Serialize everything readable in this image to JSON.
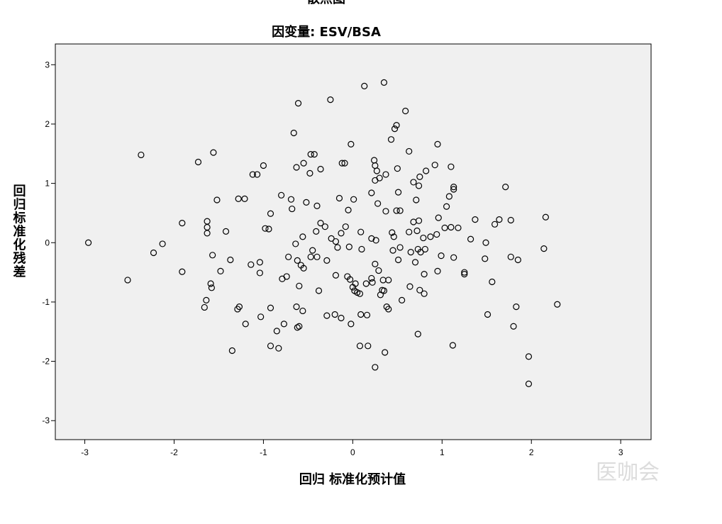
{
  "chart_data": {
    "type": "scatter",
    "title": "散点图",
    "subtitle": "因变量: ESV/BSA",
    "x_label": "回归 标准化预计值",
    "y_label": "回归标准化残差",
    "xlim": [
      -3.33,
      3.34
    ],
    "ylim": [
      -3.32,
      3.35
    ],
    "xticks": [
      -3,
      -2,
      -1,
      0,
      1,
      2,
      3
    ],
    "yticks": [
      -3,
      -2,
      -1,
      0,
      1,
      2,
      3
    ],
    "color": "#000000",
    "background": "#f0f0f0",
    "x": [
      -2.96,
      -2.52,
      -2.37,
      -2.23,
      -2.13,
      -1.91,
      -1.91,
      -1.73,
      -1.56,
      -1.63,
      -1.63,
      -1.63,
      -1.57,
      -1.52,
      -1.59,
      -1.58,
      -1.64,
      -1.66,
      -1.48,
      -1.42,
      -1.35,
      -1.37,
      -1.28,
      -1.21,
      -1.27,
      -1.29,
      -1.2,
      -1.14,
      -1.12,
      -1.07,
      -1.04,
      -1.04,
      -1.0,
      -0.98,
      -0.94,
      -0.92,
      -1.03,
      -0.92,
      -0.92,
      -0.85,
      -0.83,
      -0.8,
      -0.79,
      -0.77,
      -0.74,
      -0.72,
      -0.69,
      -0.68,
      -0.66,
      -0.64,
      -0.63,
      -0.62,
      -0.61,
      -0.6,
      -0.63,
      -0.62,
      -0.6,
      -0.58,
      -0.55,
      -0.56,
      -0.55,
      -0.56,
      -0.52,
      -0.48,
      -0.47,
      -0.43,
      -0.47,
      -0.45,
      -0.4,
      -0.41,
      -0.4,
      -0.38,
      -0.36,
      -0.36,
      -0.31,
      -0.29,
      -0.29,
      -0.25,
      -0.24,
      -0.19,
      -0.19,
      -0.2,
      -0.17,
      -0.15,
      -0.13,
      -0.12,
      -0.09,
      -0.13,
      -0.08,
      -0.06,
      -0.05,
      -0.04,
      -0.03,
      -0.02,
      -0.02,
      0.01,
      0.0,
      0.02,
      0.03,
      0.05,
      0.08,
      0.09,
      0.1,
      0.09,
      0.08,
      0.13,
      0.15,
      0.16,
      0.17,
      0.21,
      0.21,
      0.22,
      0.21,
      0.24,
      0.25,
      0.25,
      0.25,
      0.26,
      0.25,
      0.27,
      0.28,
      0.29,
      0.3,
      0.31,
      0.33,
      0.34,
      0.35,
      0.35,
      0.36,
      0.37,
      0.37,
      0.38,
      0.4,
      0.4,
      0.43,
      0.44,
      0.45,
      0.46,
      0.47,
      0.49,
      0.49,
      0.5,
      0.51,
      0.51,
      0.53,
      0.53,
      0.55,
      0.59,
      0.63,
      0.63,
      0.64,
      0.65,
      0.68,
      0.68,
      0.7,
      0.71,
      0.72,
      0.73,
      0.74,
      0.75,
      0.74,
      0.73,
      0.75,
      0.76,
      0.79,
      0.8,
      0.81,
      0.82,
      0.8,
      0.87,
      0.92,
      0.94,
      0.95,
      0.96,
      0.95,
      0.99,
      1.03,
      1.05,
      1.08,
      1.1,
      1.1,
      1.12,
      1.13,
      1.13,
      1.13,
      1.18,
      1.25,
      1.25,
      1.32,
      1.37,
      1.48,
      1.49,
      1.51,
      1.56,
      1.59,
      1.64,
      1.71,
      1.77,
      1.77,
      1.8,
      1.83,
      1.85,
      1.97,
      1.97,
      2.14,
      2.16,
      2.29
    ],
    "values": [
      0.0,
      -0.63,
      1.48,
      -0.17,
      -0.02,
      0.33,
      -0.49,
      1.36,
      1.52,
      0.36,
      0.26,
      0.16,
      -0.21,
      0.72,
      -0.69,
      -0.76,
      -0.97,
      -1.09,
      -0.48,
      0.19,
      -1.82,
      -0.29,
      0.74,
      0.74,
      -1.08,
      -1.12,
      -1.37,
      -0.37,
      1.15,
      1.15,
      -0.33,
      -0.51,
      1.3,
      0.24,
      0.23,
      0.49,
      -1.25,
      -1.1,
      -1.74,
      -1.49,
      -1.78,
      0.8,
      -0.61,
      -1.37,
      -0.57,
      -0.24,
      0.73,
      0.57,
      1.85,
      -0.02,
      1.27,
      -0.3,
      2.35,
      -0.73,
      -1.08,
      -1.43,
      -1.41,
      -0.38,
      -0.43,
      0.1,
      1.34,
      -1.15,
      0.68,
      1.17,
      1.49,
      1.49,
      -0.24,
      -0.13,
      0.62,
      0.19,
      -0.24,
      -0.81,
      1.24,
      0.33,
      0.27,
      -0.3,
      -1.23,
      2.41,
      0.07,
      0.02,
      -0.55,
      -1.21,
      -0.08,
      0.75,
      0.16,
      1.34,
      1.34,
      -1.27,
      0.27,
      -0.57,
      0.55,
      -0.07,
      -0.62,
      1.66,
      -1.37,
      0.73,
      -0.75,
      -0.81,
      -0.69,
      -0.84,
      -0.86,
      0.18,
      -0.11,
      -1.21,
      -1.74,
      2.64,
      -0.69,
      -1.22,
      -1.74,
      -0.6,
      0.07,
      -0.67,
      0.84,
      1.39,
      1.05,
      -0.36,
      1.3,
      0.04,
      -2.1,
      1.21,
      0.66,
      -0.47,
      1.09,
      -0.88,
      -0.8,
      -0.63,
      2.7,
      -0.81,
      -1.85,
      1.15,
      0.53,
      -1.08,
      -1.12,
      -0.63,
      1.74,
      0.17,
      -0.13,
      0.1,
      1.92,
      1.98,
      0.54,
      1.25,
      0.85,
      -0.29,
      -0.08,
      0.54,
      -0.97,
      2.22,
      1.54,
      0.18,
      -0.74,
      -0.16,
      1.02,
      0.35,
      -0.33,
      0.72,
      0.2,
      -0.11,
      0.37,
      1.11,
      0.96,
      -1.54,
      -0.8,
      -0.16,
      0.08,
      -0.86,
      -0.11,
      1.21,
      -0.53,
      0.1,
      1.31,
      0.14,
      1.66,
      0.42,
      -0.48,
      -0.22,
      0.25,
      0.61,
      0.78,
      1.28,
      0.26,
      -1.73,
      0.94,
      0.9,
      -0.25,
      0.25,
      -0.5,
      -0.53,
      0.06,
      0.39,
      -0.27,
      0.0,
      -1.21,
      -0.66,
      0.31,
      0.39,
      0.94,
      0.38,
      -0.24,
      -1.41,
      -1.08,
      -0.29,
      -1.92,
      -2.38,
      -0.1,
      0.43,
      -1.04
    ]
  },
  "watermark": "医咖会"
}
